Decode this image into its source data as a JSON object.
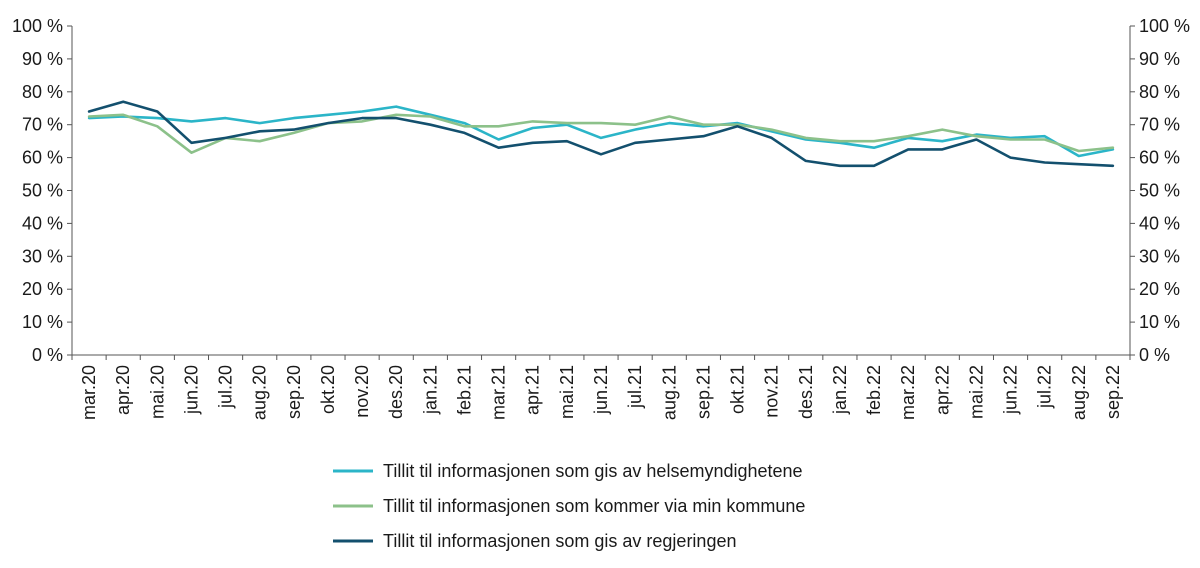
{
  "chart_data": {
    "type": "line",
    "title": "",
    "xlabel": "",
    "ylabel": "",
    "ylim": [
      0,
      100
    ],
    "y_ticks": [
      "0 %",
      "10 %",
      "20 %",
      "30 %",
      "40 %",
      "50 %",
      "60 %",
      "70 %",
      "80 %",
      "90 %",
      "100 %"
    ],
    "y_axis_both_sides": true,
    "grid": false,
    "legend_position": "bottom",
    "categories": [
      "mar.20",
      "apr.20",
      "mai.20",
      "jun.20",
      "jul.20",
      "aug.20",
      "sep.20",
      "okt.20",
      "nov.20",
      "des.20",
      "jan.21",
      "feb.21",
      "mar.21",
      "apr.21",
      "mai.21",
      "jun.21",
      "jul.21",
      "aug.21",
      "sep.21",
      "okt.21",
      "nov.21",
      "des.21",
      "jan.22",
      "feb.22",
      "mar.22",
      "apr.22",
      "mai.22",
      "jun.22",
      "jul.22",
      "aug.22",
      "sep.22"
    ],
    "series": [
      {
        "name": "Tillit til informasjonen som gis av helsemyndighetene",
        "color": "#2bb5c8",
        "values": [
          72,
          72.5,
          72,
          71,
          72,
          70.5,
          72,
          73,
          74,
          75.5,
          73,
          70.5,
          65.5,
          69,
          70,
          66,
          68.5,
          70.5,
          69.5,
          70.5,
          68,
          65.5,
          64.5,
          63,
          66,
          65,
          67,
          66,
          66.5,
          60.5,
          62.5
        ]
      },
      {
        "name": "Tillit til informasjonen som kommer via min kommune",
        "color": "#8cc18a",
        "values": [
          72.5,
          73,
          69.5,
          61.5,
          66,
          65,
          67.5,
          70.5,
          71,
          73,
          72.5,
          69.5,
          69.5,
          71,
          70.5,
          70.5,
          70,
          72.5,
          70,
          70,
          68.5,
          66,
          65,
          65,
          66.5,
          68.5,
          66.5,
          65.5,
          65.5,
          62,
          63
        ]
      },
      {
        "name": "Tillit til informasjonen som gis av regjeringen",
        "color": "#13506e",
        "values": [
          74,
          77,
          74,
          64.5,
          66,
          68,
          68.5,
          70.5,
          72,
          72,
          70,
          67.5,
          63,
          64.5,
          65,
          61,
          64.5,
          65.5,
          66.5,
          69.5,
          66,
          59,
          57.5,
          57.5,
          62.5,
          62.5,
          65.5,
          60,
          58.5,
          58,
          57.5
        ]
      }
    ]
  }
}
